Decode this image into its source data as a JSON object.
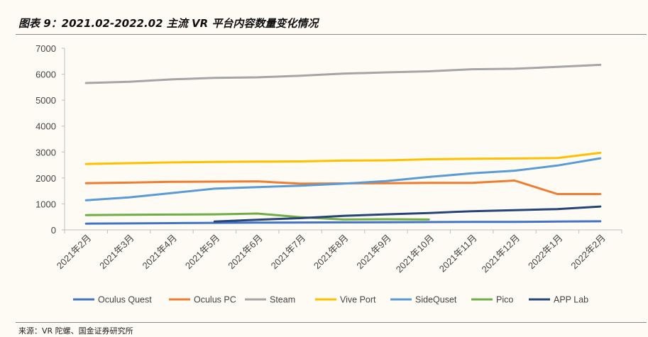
{
  "header": {
    "title": "图表 9：2021.02-2022.02 主流 VR 平台内容数量变化情况"
  },
  "footer": {
    "source": "来源：VR 陀螺、国金证券研究所"
  },
  "chart_data": {
    "type": "line",
    "title": "",
    "xlabel": "",
    "ylabel": "",
    "ylim": [
      0,
      7000
    ],
    "yticks": [
      "0",
      "1000",
      "2000",
      "3000",
      "4000",
      "5000",
      "6000",
      "7000"
    ],
    "grid": false,
    "legend_position": "bottom",
    "categories": [
      "2021年2月",
      "2021年3月",
      "2021年4月",
      "2021年5月",
      "2021年6月",
      "2021年7月",
      "2021年8月",
      "2021年9月",
      "2021年10月",
      "2021年11月",
      "2021年12月",
      "2022年1月",
      "2022年2月"
    ],
    "series": [
      {
        "name": "Oculus Quest",
        "color": "#4472c4",
        "values": [
          240,
          250,
          260,
          270,
          280,
          285,
          290,
          295,
          300,
          305,
          310,
          320,
          330
        ]
      },
      {
        "name": "Oculus PC",
        "color": "#ed7d31",
        "values": [
          1800,
          1820,
          1850,
          1860,
          1870,
          1780,
          1790,
          1800,
          1810,
          1810,
          1900,
          1380,
          1380
        ]
      },
      {
        "name": "Steam",
        "color": "#a5a5a5",
        "values": [
          5660,
          5710,
          5800,
          5860,
          5880,
          5940,
          6020,
          6070,
          6110,
          6190,
          6210,
          6280,
          6360
        ]
      },
      {
        "name": "Vive Port",
        "color": "#ffc000",
        "values": [
          2540,
          2570,
          2600,
          2620,
          2630,
          2640,
          2670,
          2680,
          2720,
          2740,
          2750,
          2770,
          2970
        ]
      },
      {
        "name": "SideQuset",
        "color": "#5b9bd5",
        "values": [
          1140,
          1250,
          1420,
          1590,
          1650,
          1700,
          1780,
          1880,
          2040,
          2180,
          2280,
          2480,
          2760
        ]
      },
      {
        "name": "Pico",
        "color": "#70ad47",
        "values": [
          570,
          580,
          590,
          600,
          630,
          490,
          400,
          410,
          400,
          null,
          null,
          null,
          null
        ]
      },
      {
        "name": "APP Lab",
        "color": "#264478",
        "values": [
          null,
          null,
          null,
          320,
          390,
          450,
          540,
          600,
          650,
          720,
          760,
          800,
          900
        ]
      }
    ]
  }
}
